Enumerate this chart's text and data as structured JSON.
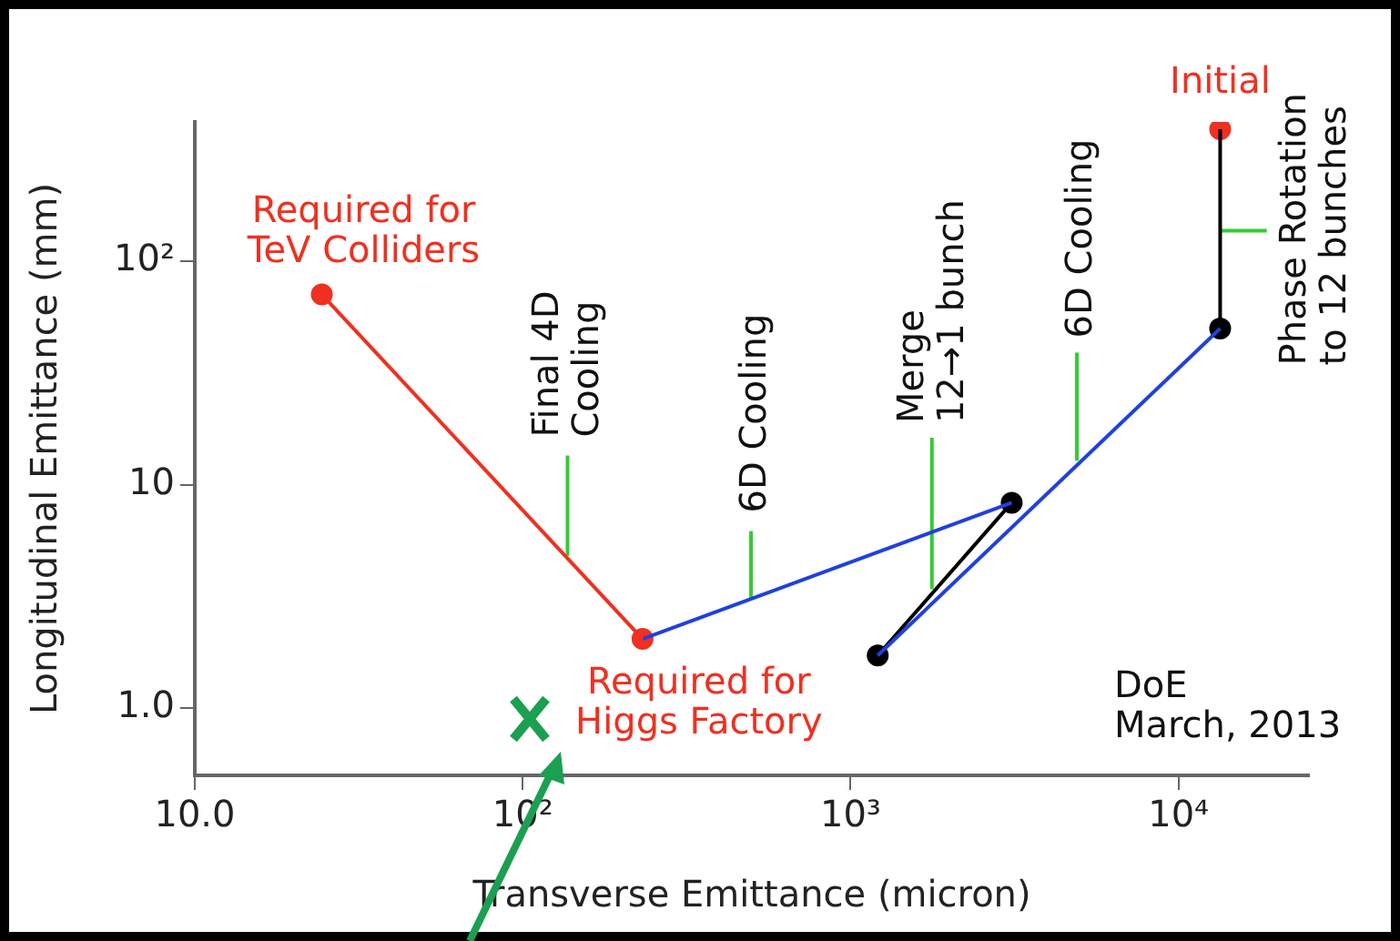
{
  "chart_data": {
    "type": "line",
    "xlabel": "Transverse Emittance (micron)",
    "ylabel": "Longitudinal Emittance (mm)",
    "log": "xy",
    "grid": false,
    "xlim": [
      10,
      25000
    ],
    "xticks": [
      {
        "value": 10,
        "label": "10.0"
      },
      {
        "value": 100,
        "label": "10²"
      },
      {
        "value": 1000,
        "label": "10³"
      },
      {
        "value": 10000,
        "label": "10⁴"
      }
    ],
    "ylim": [
      0.5,
      420
    ],
    "yticks": [
      {
        "value": 1,
        "label": "1.0"
      },
      10,
      {
        "value": 100,
        "label": "10²"
      }
    ],
    "series": [
      {
        "type": "line",
        "color": "#f03020",
        "marker": "none",
        "x": [
          24.4,
          232
        ],
        "values": [
          71,
          2.04
        ]
      },
      {
        "type": "line",
        "color": "#2040e0",
        "marker": "none",
        "x": [
          232,
          3100
        ],
        "values": [
          2.04,
          8.3
        ]
      },
      {
        "type": "line",
        "color": "#2040e0",
        "marker": "none",
        "x": [
          1210,
          13400
        ],
        "values": [
          1.72,
          50
        ]
      },
      {
        "type": "line",
        "color": "#000000",
        "marker": "none",
        "x": [
          1210,
          3100
        ],
        "values": [
          1.72,
          8.3
        ]
      },
      {
        "type": "line",
        "color": "#000000",
        "marker": "none",
        "x": [
          13400,
          13400
        ],
        "values": [
          50,
          390
        ]
      },
      {
        "type": "line",
        "color": "#33cc33",
        "marker": "none",
        "x": [
          137,
          137
        ],
        "values": [
          4.8,
          13.5
        ]
      },
      {
        "type": "line",
        "color": "#33cc33",
        "marker": "none",
        "x": [
          497,
          497
        ],
        "values": [
          3.1,
          6.2
        ]
      },
      {
        "type": "line",
        "color": "#33cc33",
        "marker": "none",
        "x": [
          1770,
          1770
        ],
        "values": [
          3.4,
          16.2
        ]
      },
      {
        "type": "line",
        "color": "#33cc33",
        "marker": "none",
        "x": [
          4900,
          4900
        ],
        "values": [
          12.8,
          39
        ]
      },
      {
        "type": "line",
        "color": "#33cc33",
        "marker": "none",
        "x": [
          13400,
          18600
        ],
        "values": [
          137,
          137
        ]
      },
      {
        "type": "scatter",
        "color": "#f03020",
        "marker": "circle",
        "x": [
          24.4,
          232,
          13400
        ],
        "values": [
          71,
          2.04,
          390
        ]
      },
      {
        "type": "scatter",
        "color": "#000000",
        "marker": "circle",
        "x": [
          1210,
          3100,
          13400
        ],
        "values": [
          1.72,
          8.3,
          50
        ]
      }
    ],
    "annotations": [
      {
        "text": "Required for\nTeV Colliders",
        "x": 24.4,
        "y": 71
      },
      {
        "text": "Required for\nHiggs Factory",
        "x": 232,
        "y": 2.04
      },
      {
        "text": "Initial",
        "x": 13400,
        "y": 390
      },
      {
        "text": "Final 4D\nCooling",
        "x": 137,
        "y": 13.5
      },
      {
        "text": "6D Cooling",
        "x": 497,
        "y": 6.2
      },
      {
        "text": "Merge\n12→1 bunch",
        "x": 1770,
        "y": 16.2
      },
      {
        "text": "6D Cooling",
        "x": 4900,
        "y": 39
      },
      {
        "text": "Phase Rotation\nto 12 bunches",
        "x": 18600,
        "y": 137
      },
      "DoE\nMarch, 2013"
    ]
  }
}
